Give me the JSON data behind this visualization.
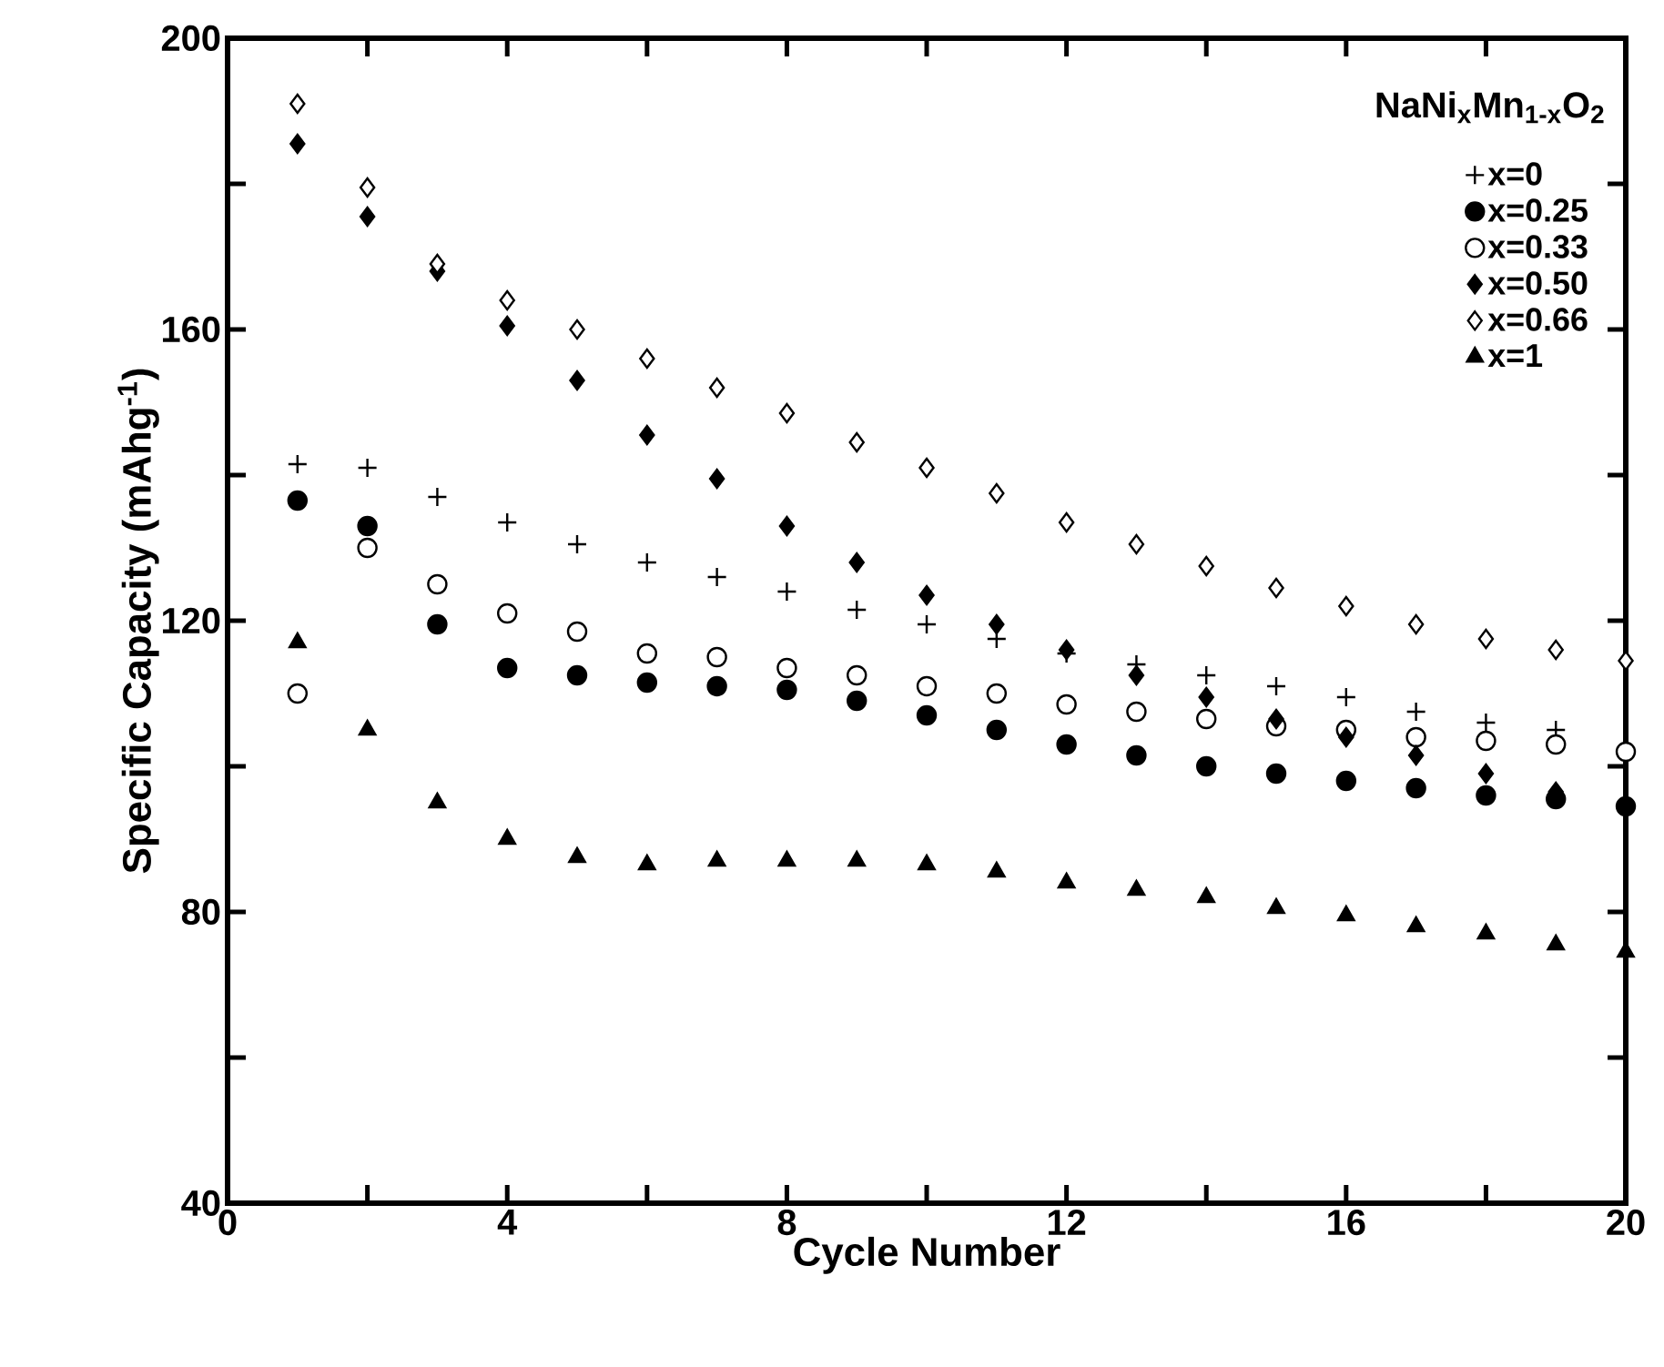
{
  "chart_data": {
    "type": "scatter",
    "xlabel": "Cycle Number",
    "ylabel": "Specific Capacity (mAhg$^{-1}$)",
    "legend_title": "NaNi$_{x}$Mn$_{1-x}$O$_{2}$",
    "legend": "top right",
    "grid": false,
    "xlim": [
      0,
      20
    ],
    "xticks": [
      0,
      {
        "value": 2,
        "label": null
      },
      4,
      {
        "value": 6,
        "label": null
      },
      8,
      {
        "value": 10,
        "label": null
      },
      12,
      {
        "value": 14,
        "label": null
      },
      16,
      {
        "value": 18,
        "label": null
      },
      20
    ],
    "ylim": [
      40,
      200
    ],
    "yticks": [
      40,
      {
        "value": 60,
        "label": null
      },
      80,
      {
        "value": 100,
        "label": null
      },
      120,
      {
        "value": 140,
        "label": null
      },
      160,
      {
        "value": 180,
        "label": null
      },
      200
    ],
    "x": [
      1,
      2,
      3,
      4,
      5,
      6,
      7,
      8,
      9,
      10,
      11,
      12,
      13,
      14,
      15,
      16,
      17,
      18,
      19,
      20
    ],
    "series": [
      {
        "name": "x=0",
        "color": "#000000",
        "marker": "cross",
        "values": [
          141.5,
          141,
          137,
          133.5,
          130.5,
          128,
          126,
          124,
          121.5,
          119.5,
          117.5,
          115.5,
          114,
          112.5,
          111,
          109.5,
          107.5,
          106,
          105,
          null
        ]
      },
      {
        "name": "x=0.25",
        "color": "#000000",
        "marker": "circle",
        "values": [
          136.5,
          133,
          119.5,
          113.5,
          112.5,
          111.5,
          111,
          110.5,
          109,
          107,
          105,
          103,
          101.5,
          100,
          99,
          98,
          97,
          96,
          95.5,
          94.5
        ]
      },
      {
        "name": "x=0.33",
        "color": "#ffffff",
        "marker": "circle",
        "values": [
          110,
          130,
          125,
          121,
          118.5,
          115.5,
          115,
          113.5,
          112.5,
          111,
          110,
          108.5,
          107.5,
          106.5,
          105.5,
          105,
          104,
          103.5,
          103,
          102
        ]
      },
      {
        "name": "x=0.50",
        "color": "#000000",
        "marker": "diamond",
        "values": [
          185.5,
          175.5,
          168,
          160.5,
          153,
          145.5,
          139.5,
          133,
          128,
          123.5,
          119.5,
          116,
          112.5,
          109.5,
          106.5,
          104,
          101.5,
          99,
          96.5,
          null
        ]
      },
      {
        "name": "x=0.66",
        "color": "#ffffff",
        "marker": "diamond",
        "values": [
          191,
          179.5,
          169,
          164,
          160,
          156,
          152,
          148.5,
          144.5,
          141,
          137.5,
          133.5,
          130.5,
          127.5,
          124.5,
          122,
          119.5,
          117.5,
          116,
          114.5
        ]
      },
      {
        "name": "x=1",
        "color": "#000000",
        "marker": "triangle",
        "values": [
          117,
          105,
          95,
          90,
          87.5,
          86.5,
          87,
          87,
          87,
          86.5,
          85.5,
          84,
          83,
          82,
          80.5,
          79.5,
          78,
          77,
          75.5,
          74.5
        ]
      }
    ]
  }
}
